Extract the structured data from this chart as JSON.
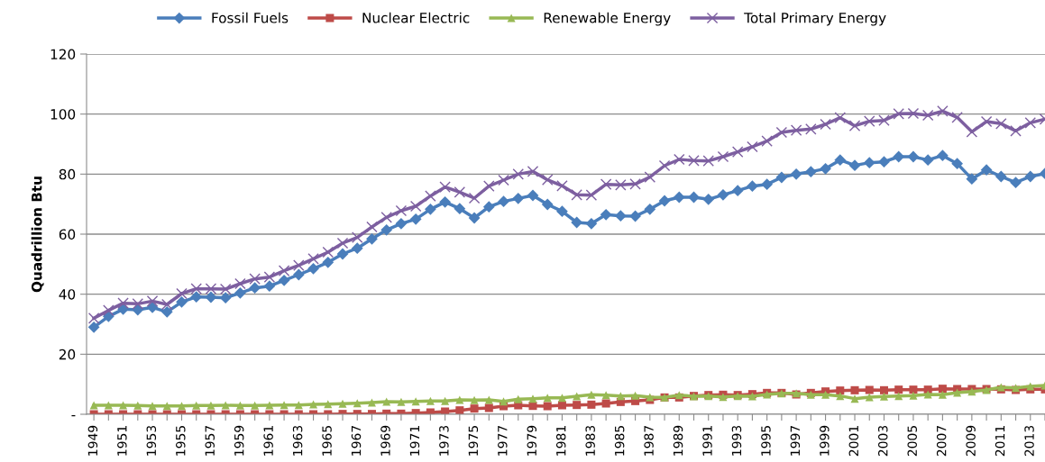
{
  "chart_data": {
    "type": "line",
    "ylabel": "Quadrillion Btu",
    "categories": [
      "1949",
      null,
      "1951",
      null,
      "1953",
      null,
      "1955",
      null,
      "1957",
      null,
      "1959",
      null,
      "1961",
      null,
      "1963",
      null,
      "1965",
      null,
      "1967",
      null,
      "1969",
      null,
      "1971",
      null,
      "1973",
      null,
      "1975",
      null,
      "1977",
      null,
      "1979",
      null,
      "1981",
      null,
      "1983",
      null,
      "1985",
      null,
      "1987",
      null,
      "1989",
      null,
      "1991",
      null,
      "1993",
      null,
      "1995",
      null,
      "1997",
      null,
      "1999",
      null,
      "2001",
      null,
      "2003",
      null,
      "2005",
      null,
      "2007",
      null,
      "2009",
      null,
      "2011",
      null,
      "2013",
      null
    ],
    "series": [
      {
        "name": "Fossil Fuels",
        "color": "#4a7ebb",
        "marker": "diamond",
        "values": [
          29.0,
          32.6,
          35.0,
          34.8,
          35.6,
          34.1,
          37.4,
          39.1,
          39.0,
          38.8,
          40.4,
          42.1,
          42.7,
          44.6,
          46.5,
          48.5,
          50.6,
          53.4,
          55.3,
          58.4,
          61.4,
          63.5,
          65.0,
          68.3,
          70.7,
          68.5,
          65.4,
          69.1,
          70.9,
          71.9,
          72.9,
          69.9,
          67.6,
          63.9,
          63.5,
          66.5,
          66.1,
          66.0,
          68.3,
          71.1,
          72.3,
          72.3,
          71.6,
          73.1,
          74.5,
          76.0,
          76.6,
          78.9,
          80.0,
          80.8,
          81.8,
          84.7,
          82.9,
          83.8,
          84.1,
          85.8,
          85.8,
          84.7,
          86.2,
          83.5,
          78.4,
          81.4,
          79.2,
          77.2,
          79.2,
          80.2
        ]
      },
      {
        "name": "Nuclear Electric",
        "color": "#be4b48",
        "marker": "square",
        "values": [
          0.0,
          0.0,
          0.0,
          0.0,
          0.0,
          0.0,
          0.0,
          0.0,
          0.0,
          0.0,
          0.0,
          0.0,
          0.0,
          0.0,
          0.0,
          0.0,
          0.0,
          0.1,
          0.1,
          0.1,
          0.2,
          0.2,
          0.4,
          0.6,
          0.9,
          1.3,
          1.9,
          2.1,
          2.7,
          3.0,
          2.8,
          2.7,
          3.0,
          3.1,
          3.2,
          3.6,
          4.1,
          4.4,
          4.8,
          5.6,
          5.6,
          6.1,
          6.4,
          6.5,
          6.4,
          6.7,
          7.1,
          7.1,
          6.6,
          7.1,
          7.6,
          7.9,
          8.0,
          8.1,
          8.0,
          8.2,
          8.2,
          8.2,
          8.5,
          8.4,
          8.4,
          8.4,
          8.3,
          8.1,
          8.3,
          8.3
        ]
      },
      {
        "name": "Renewable Energy",
        "color": "#98b954",
        "marker": "triangle",
        "values": [
          3.0,
          3.0,
          3.0,
          2.9,
          2.8,
          2.8,
          2.8,
          2.9,
          2.9,
          3.0,
          2.9,
          2.9,
          3.0,
          3.1,
          3.1,
          3.3,
          3.4,
          3.5,
          3.7,
          3.9,
          4.2,
          4.1,
          4.3,
          4.4,
          4.4,
          4.8,
          4.7,
          4.8,
          4.3,
          5.0,
          5.2,
          5.5,
          5.5,
          6.0,
          6.5,
          6.4,
          6.1,
          6.2,
          5.7,
          5.6,
          6.4,
          6.0,
          6.1,
          5.8,
          6.1,
          6.0,
          6.6,
          7.0,
          7.0,
          6.5,
          6.5,
          6.1,
          5.2,
          5.7,
          5.9,
          6.1,
          6.2,
          6.6,
          6.5,
          7.2,
          7.6,
          8.1,
          9.0,
          8.8,
          9.3,
          9.6
        ]
      },
      {
        "name": "Total Primary Energy",
        "color": "#7d5fa0",
        "marker": "cross",
        "values": [
          32.0,
          34.6,
          37.0,
          36.8,
          37.7,
          36.6,
          40.2,
          41.8,
          41.8,
          41.7,
          43.5,
          45.1,
          45.7,
          47.8,
          49.6,
          51.8,
          54.0,
          57.0,
          58.9,
          62.4,
          65.6,
          67.8,
          69.3,
          72.7,
          75.7,
          74.0,
          72.0,
          76.0,
          78.0,
          80.0,
          80.9,
          78.1,
          76.1,
          73.1,
          73.0,
          76.6,
          76.4,
          76.7,
          79.0,
          82.8,
          84.9,
          84.5,
          84.4,
          85.8,
          87.4,
          89.1,
          91.0,
          93.9,
          94.6,
          95.0,
          96.6,
          98.8,
          96.1,
          97.6,
          97.9,
          100.1,
          100.2,
          99.6,
          101.0,
          98.9,
          94.1,
          97.5,
          96.8,
          94.4,
          97.1,
          98.3
        ]
      }
    ],
    "ylim": [
      0,
      120
    ],
    "yticks": [
      {
        "value": 0,
        "label": "-"
      },
      20,
      40,
      60,
      80,
      100,
      120
    ],
    "grid": "y",
    "legend": "top",
    "line_style": "solid"
  }
}
